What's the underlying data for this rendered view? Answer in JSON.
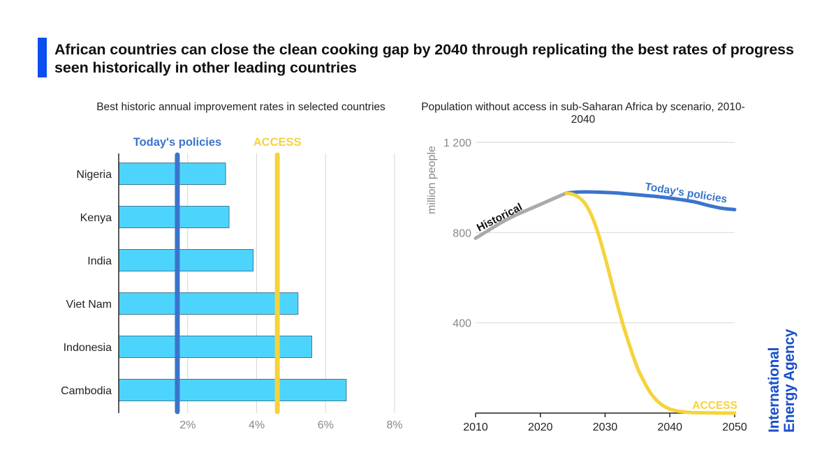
{
  "header": {
    "title": "African countries can close the clean cooking gap by 2040 through replicating the best rates of progress seen historically in other leading countries",
    "accent_color": "#0a4ff0"
  },
  "branding": {
    "line1": "International",
    "line2": "Energy Agency",
    "color": "#1a4fc9"
  },
  "chart_data": [
    {
      "type": "bar",
      "orientation": "horizontal",
      "title": "Best historic annual improvement rates in selected countries",
      "xlabel": "",
      "ylabel": "",
      "categories": [
        "Nigeria",
        "Kenya",
        "India",
        "Viet Nam",
        "Indonesia",
        "Cambodia"
      ],
      "values": [
        3.1,
        3.2,
        3.9,
        5.2,
        5.6,
        6.6
      ],
      "unit": "%",
      "xlim": [
        0,
        8
      ],
      "xticks": [
        2,
        4,
        6,
        8
      ],
      "xtick_labels": [
        "2%",
        "4%",
        "6%",
        "8%"
      ],
      "grid": true,
      "bar_color": "#4dd4fd",
      "reference_lines": [
        {
          "name": "Today's policies",
          "value": 1.7,
          "color": "#3a74cc"
        },
        {
          "name": "ACCESS",
          "value": 4.6,
          "color": "#f5d33b"
        }
      ]
    },
    {
      "type": "line",
      "title": "Population without access in sub-Saharan Africa by scenario, 2010-2040",
      "xlabel": "",
      "ylabel": "million people",
      "xlim": [
        2010,
        2050
      ],
      "ylim": [
        0,
        1200
      ],
      "xticks": [
        2010,
        2020,
        2030,
        2040,
        2050
      ],
      "xtick_labels": [
        "2010",
        "2020",
        "2030",
        "2040",
        "2050"
      ],
      "yticks": [
        400,
        800,
        1200
      ],
      "ytick_labels": [
        "400",
        "800",
        "1 200"
      ],
      "grid": true,
      "series": [
        {
          "name": "Historical",
          "color": "#aaaaaa",
          "label_color": "#111111",
          "x": [
            2010,
            2012,
            2014,
            2016,
            2018,
            2020,
            2022,
            2024
          ],
          "y": [
            775,
            810,
            845,
            875,
            900,
            925,
            950,
            975
          ]
        },
        {
          "name": "Today's policies",
          "color": "#3a74cc",
          "label_color": "#3a74cc",
          "x": [
            2024,
            2026,
            2028,
            2030,
            2032,
            2034,
            2036,
            2038,
            2040,
            2042,
            2044,
            2046,
            2048,
            2050
          ],
          "y": [
            975,
            980,
            980,
            978,
            975,
            970,
            965,
            960,
            953,
            945,
            935,
            920,
            908,
            902
          ]
        },
        {
          "name": "ACCESS",
          "color": "#f5d33b",
          "label_color": "#f5d33b",
          "x": [
            2024,
            2025,
            2026,
            2027,
            2028,
            2029,
            2030,
            2031,
            2032,
            2033,
            2034,
            2035,
            2036,
            2037,
            2038,
            2039,
            2040,
            2041,
            2042,
            2043,
            2044,
            2046,
            2048,
            2050
          ],
          "y": [
            975,
            970,
            955,
            925,
            870,
            790,
            690,
            580,
            470,
            370,
            280,
            200,
            140,
            90,
            55,
            32,
            18,
            10,
            6,
            3,
            2,
            1,
            0,
            0
          ]
        }
      ]
    }
  ]
}
